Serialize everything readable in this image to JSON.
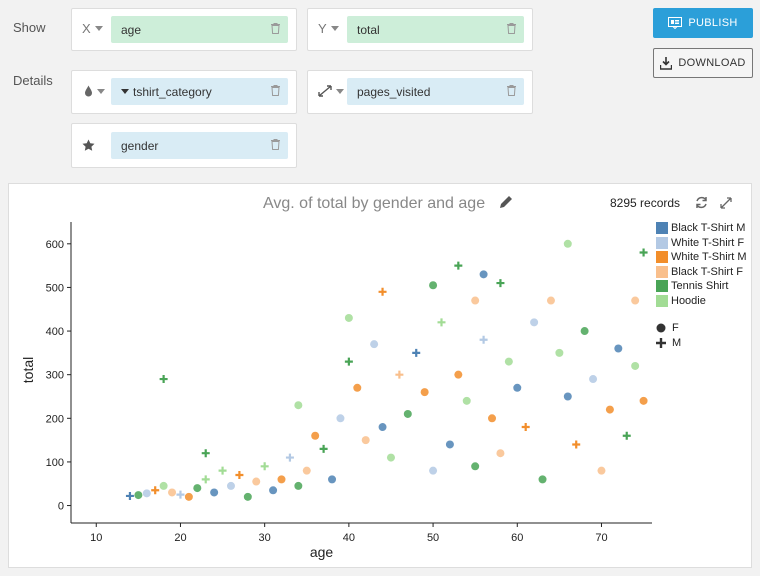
{
  "shelf": {
    "show_label": "Show",
    "details_label": "Details",
    "x": {
      "axis": "X",
      "field": "age"
    },
    "y": {
      "axis": "Y",
      "field": "total"
    },
    "color": {
      "field": "tshirt_category"
    },
    "size": {
      "field": "pages_visited"
    },
    "shape": {
      "field": "gender"
    }
  },
  "actions": {
    "publish": "PUBLISH",
    "download": "DOWNLOAD"
  },
  "header": {
    "title": "Avg. of total by gender and age",
    "records": "8295 records"
  },
  "chart_data": {
    "type": "scatter",
    "title": "Avg. of total by gender and age",
    "xlabel": "age",
    "ylabel": "total",
    "xlim": [
      7,
      76
    ],
    "ylim": [
      -40,
      650
    ],
    "xticks": [
      10,
      20,
      30,
      40,
      50,
      60,
      70
    ],
    "yticks": [
      0,
      100,
      200,
      300,
      400,
      500,
      600
    ],
    "grid": false,
    "legend_position": "right",
    "color_legend": [
      {
        "name": "Black T-Shirt M",
        "color": "#4e82b4"
      },
      {
        "name": "White T-Shirt F",
        "color": "#b3c9e4"
      },
      {
        "name": "White T-Shirt M",
        "color": "#f28e2b"
      },
      {
        "name": "Black T-Shirt F",
        "color": "#f9bf8c"
      },
      {
        "name": "Tennis Shirt",
        "color": "#49a456"
      },
      {
        "name": "Hoodie",
        "color": "#a2dc95"
      }
    ],
    "shape_legend": [
      {
        "name": "F",
        "shape": "circle"
      },
      {
        "name": "M",
        "shape": "cross"
      }
    ],
    "points_note_shown": "8295 records",
    "points": [
      [
        14,
        22,
        0,
        "M"
      ],
      [
        15,
        24,
        4,
        "F"
      ],
      [
        16,
        28,
        1,
        "F"
      ],
      [
        17,
        35,
        2,
        "M"
      ],
      [
        18,
        290,
        4,
        "M"
      ],
      [
        18,
        45,
        5,
        "F"
      ],
      [
        19,
        30,
        3,
        "F"
      ],
      [
        20,
        25,
        1,
        "M"
      ],
      [
        21,
        20,
        2,
        "F"
      ],
      [
        22,
        40,
        4,
        "F"
      ],
      [
        23,
        120,
        4,
        "M"
      ],
      [
        23,
        60,
        5,
        "M"
      ],
      [
        24,
        30,
        0,
        "F"
      ],
      [
        25,
        80,
        5,
        "M"
      ],
      [
        26,
        45,
        1,
        "F"
      ],
      [
        27,
        70,
        2,
        "M"
      ],
      [
        28,
        20,
        4,
        "F"
      ],
      [
        29,
        55,
        3,
        "F"
      ],
      [
        30,
        90,
        5,
        "M"
      ],
      [
        31,
        35,
        0,
        "F"
      ],
      [
        32,
        60,
        2,
        "F"
      ],
      [
        33,
        110,
        1,
        "M"
      ],
      [
        34,
        230,
        5,
        "F"
      ],
      [
        34,
        45,
        4,
        "F"
      ],
      [
        35,
        80,
        3,
        "F"
      ],
      [
        36,
        160,
        2,
        "F"
      ],
      [
        37,
        130,
        4,
        "M"
      ],
      [
        38,
        60,
        0,
        "F"
      ],
      [
        39,
        200,
        1,
        "F"
      ],
      [
        40,
        430,
        5,
        "F"
      ],
      [
        40,
        330,
        4,
        "M"
      ],
      [
        41,
        270,
        2,
        "F"
      ],
      [
        42,
        150,
        3,
        "F"
      ],
      [
        43,
        370,
        1,
        "F"
      ],
      [
        44,
        490,
        2,
        "M"
      ],
      [
        44,
        180,
        0,
        "F"
      ],
      [
        45,
        110,
        5,
        "F"
      ],
      [
        46,
        300,
        3,
        "M"
      ],
      [
        47,
        210,
        4,
        "F"
      ],
      [
        48,
        350,
        0,
        "M"
      ],
      [
        49,
        260,
        2,
        "F"
      ],
      [
        50,
        505,
        4,
        "F"
      ],
      [
        50,
        80,
        1,
        "F"
      ],
      [
        51,
        420,
        5,
        "M"
      ],
      [
        52,
        140,
        0,
        "F"
      ],
      [
        53,
        550,
        4,
        "M"
      ],
      [
        53,
        300,
        2,
        "F"
      ],
      [
        54,
        240,
        5,
        "F"
      ],
      [
        55,
        470,
        3,
        "F"
      ],
      [
        55,
        90,
        4,
        "F"
      ],
      [
        56,
        530,
        0,
        "F"
      ],
      [
        56,
        380,
        1,
        "M"
      ],
      [
        57,
        200,
        2,
        "F"
      ],
      [
        58,
        510,
        4,
        "M"
      ],
      [
        58,
        120,
        3,
        "F"
      ],
      [
        59,
        330,
        5,
        "F"
      ],
      [
        60,
        270,
        0,
        "F"
      ],
      [
        61,
        180,
        2,
        "M"
      ],
      [
        62,
        420,
        1,
        "F"
      ],
      [
        63,
        60,
        4,
        "F"
      ],
      [
        64,
        470,
        3,
        "F"
      ],
      [
        65,
        350,
        5,
        "F"
      ],
      [
        66,
        600,
        5,
        "F"
      ],
      [
        66,
        250,
        0,
        "F"
      ],
      [
        67,
        140,
        2,
        "M"
      ],
      [
        68,
        400,
        4,
        "F"
      ],
      [
        69,
        290,
        1,
        "F"
      ],
      [
        70,
        80,
        3,
        "F"
      ],
      [
        71,
        220,
        2,
        "F"
      ],
      [
        72,
        360,
        0,
        "F"
      ],
      [
        73,
        160,
        4,
        "M"
      ],
      [
        74,
        470,
        3,
        "F"
      ],
      [
        74,
        320,
        5,
        "F"
      ],
      [
        75,
        580,
        4,
        "M"
      ],
      [
        75,
        240,
        2,
        "F"
      ]
    ]
  }
}
